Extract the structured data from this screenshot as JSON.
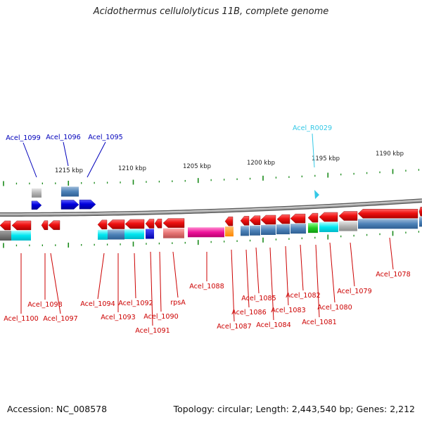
{
  "title": "Acidothermus cellulolyticus 11B, complete genome",
  "footer": {
    "accession": "Accession: NC_008578",
    "summary": "Topology: circular; Length: 2,443,540 bp; Genes: 2,212"
  },
  "colors": {
    "backbone": "#8c8c8c",
    "forward_gene": "#0000dd",
    "reverse_gene": "#ee1111",
    "rna": "#33c8e6",
    "label_forward": "#0000bb",
    "label_reverse": "#cc0000",
    "label_rna": "#33c8e6",
    "tick": "#1a8a1a"
  },
  "scale_labels": [
    "1215 kbp",
    "1210 kbp",
    "1205 kbp",
    "1200 kbp",
    "1195 kbp",
    "1190 kbp"
  ],
  "genes": [
    {
      "label": "Acel_1099",
      "strand": "forward"
    },
    {
      "label": "Acel_1096",
      "strand": "forward"
    },
    {
      "label": "Acel_1095",
      "strand": "forward"
    },
    {
      "label": "Acel_R0029",
      "strand": "rna"
    },
    {
      "label": "Acel_1100",
      "strand": "reverse"
    },
    {
      "label": "Acel_1098",
      "strand": "reverse"
    },
    {
      "label": "Acel_1097",
      "strand": "reverse"
    },
    {
      "label": "Acel_1094",
      "strand": "reverse"
    },
    {
      "label": "Acel_1093",
      "strand": "reverse"
    },
    {
      "label": "Acel_1092",
      "strand": "reverse"
    },
    {
      "label": "Acel_1091",
      "strand": "reverse"
    },
    {
      "label": "Acel_1090",
      "strand": "reverse"
    },
    {
      "label": "rpsA",
      "strand": "reverse"
    },
    {
      "label": "Acel_1088",
      "strand": "reverse"
    },
    {
      "label": "Acel_1087",
      "strand": "reverse"
    },
    {
      "label": "Acel_1086",
      "strand": "reverse"
    },
    {
      "label": "Acel_1085",
      "strand": "reverse"
    },
    {
      "label": "Acel_1084",
      "strand": "reverse"
    },
    {
      "label": "Acel_1083",
      "strand": "reverse"
    },
    {
      "label": "Acel_1082",
      "strand": "reverse"
    },
    {
      "label": "Acel_1081",
      "strand": "reverse"
    },
    {
      "label": "Acel_1080",
      "strand": "reverse"
    },
    {
      "label": "Acel_1079",
      "strand": "reverse"
    },
    {
      "label": "Acel_1078",
      "strand": "reverse"
    }
  ]
}
